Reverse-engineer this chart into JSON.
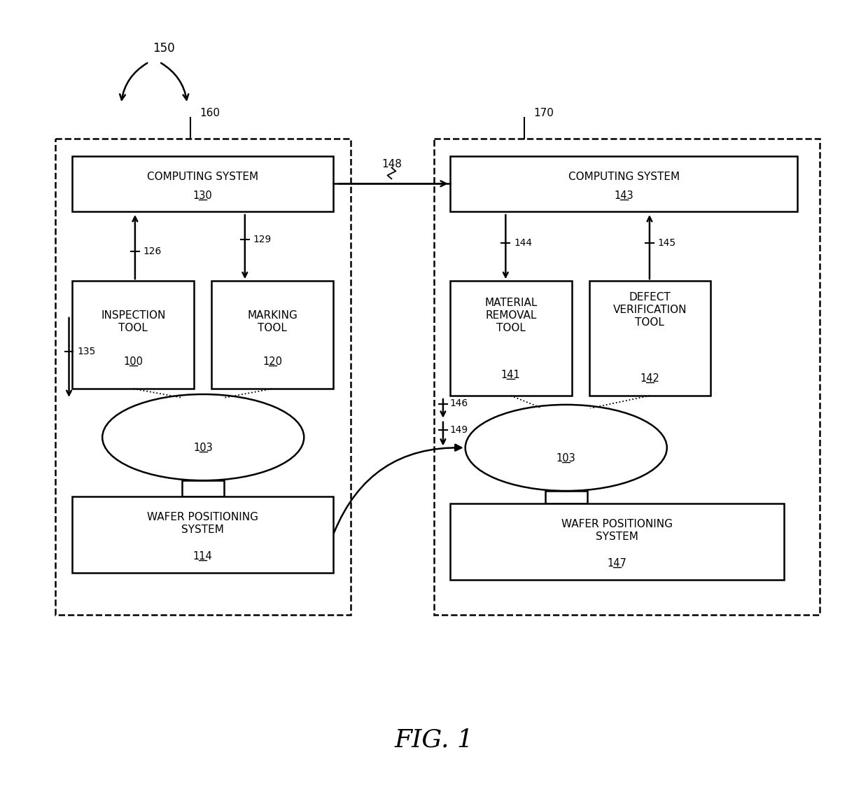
{
  "bg_color": "#ffffff",
  "fig_caption": "FIG. 1",
  "label_150": "150",
  "label_160": "160",
  "label_170": "170",
  "label_148": "148",
  "label_126": "126",
  "label_129": "129",
  "label_144": "144",
  "label_145": "145",
  "label_135": "135",
  "label_146": "146",
  "label_149": "149",
  "label_103": "103",
  "label_114": "114",
  "label_147": "147",
  "label_130": "130",
  "label_143": "143",
  "label_100": "100",
  "label_120": "120",
  "label_141": "141",
  "label_142": "142",
  "text_computing": "COMPUTING SYSTEM",
  "text_inspection": "INSPECTION\nTOOL",
  "text_marking": "MARKING\nTOOL",
  "text_material": "MATERIAL\nREMOVAL\nTOOL",
  "text_defect": "DEFECT\nVERIFICATION\nTOOL",
  "text_wafer": "WAFER POSITIONING\nSYSTEM"
}
